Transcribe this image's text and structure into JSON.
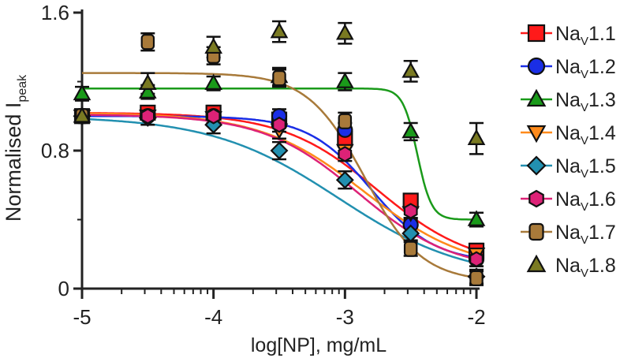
{
  "chart_data": {
    "type": "scatter",
    "title": "",
    "xlabel": "log[NP], mg/mL",
    "ylabel_main": "Normalised I",
    "ylabel_sub": "peak",
    "xlim": [
      -5,
      -2
    ],
    "ylim": [
      0,
      1.6
    ],
    "x_ticks": [
      -5,
      -4,
      -3,
      -2
    ],
    "x_tick_labels": [
      "-5",
      "-4",
      "-3",
      "-2"
    ],
    "y_ticks": [
      0,
      0.8,
      1.6
    ],
    "y_tick_labels": [
      "0",
      "0.8",
      "1.6"
    ],
    "grid": false,
    "legend_position": "right",
    "x": [
      -5,
      -4.5,
      -4,
      -3.5,
      -3,
      -2.5,
      -2
    ],
    "series": [
      {
        "name_main": "Na",
        "name_sub": "V",
        "name_tail": "1.1",
        "color": "#ff1a1a",
        "marker": "square",
        "values": [
          1.0,
          1.02,
          1.02,
          0.98,
          0.87,
          0.51,
          0.22
        ],
        "errors": [
          0,
          0,
          0.04,
          0.04,
          0.04,
          0.04,
          0.04
        ],
        "fit": {
          "top": 1.02,
          "bottom": 0.12,
          "logec50": -2.75,
          "hill": 1.2
        }
      },
      {
        "name_main": "Na",
        "name_sub": "V",
        "name_tail": "1.2",
        "color": "#1a2ee6",
        "marker": "circle",
        "values": [
          1.0,
          1.0,
          1.0,
          1.0,
          0.92,
          0.37,
          0.17
        ],
        "errors": [
          0,
          0,
          0.04,
          0.04,
          0.04,
          0.04,
          0.04
        ],
        "fit": {
          "top": 1.0,
          "bottom": 0.15,
          "logec50": -2.8,
          "hill": 1.8
        }
      },
      {
        "name_main": "Na",
        "name_sub": "V",
        "name_tail": "1.3",
        "color": "#1a9a1a",
        "marker": "triangle-up",
        "values": [
          1.13,
          1.14,
          1.19,
          1.23,
          1.2,
          0.91,
          0.4
        ],
        "errors": [
          0.04,
          0.04,
          0.04,
          0.05,
          0.05,
          0.05,
          0.04
        ],
        "fit": {
          "top": 1.16,
          "bottom": 0.4,
          "logec50": -2.45,
          "hill": 8
        }
      },
      {
        "name_main": "Na",
        "name_sub": "V",
        "name_tail": "1.4",
        "color": "#ff8a1a",
        "marker": "triangle-down",
        "values": [
          1.0,
          1.0,
          0.99,
          0.92,
          0.8,
          0.44,
          0.2
        ],
        "errors": [
          0,
          0,
          0.04,
          0.05,
          0.04,
          0.04,
          0.04
        ],
        "fit": {
          "top": 1.02,
          "bottom": 0.1,
          "logec50": -2.85,
          "hill": 1.1
        }
      },
      {
        "name_main": "Na",
        "name_sub": "V",
        "name_tail": "1.5",
        "color": "#2290b0",
        "marker": "diamond",
        "values": [
          1.0,
          0.99,
          0.95,
          0.8,
          0.63,
          0.32,
          0.07
        ],
        "errors": [
          0,
          0.04,
          0.05,
          0.05,
          0.05,
          0.04,
          0.04
        ],
        "fit": {
          "top": 1.0,
          "bottom": 0.05,
          "logec50": -3.05,
          "hill": 0.9
        }
      },
      {
        "name_main": "Na",
        "name_sub": "V",
        "name_tail": "1.6",
        "color": "#dd2277",
        "marker": "hexagon",
        "values": [
          1.0,
          1.0,
          1.0,
          0.95,
          0.78,
          0.45,
          0.17
        ],
        "errors": [
          0,
          0,
          0.04,
          0.04,
          0.04,
          0.04,
          0.04
        ],
        "fit": {
          "top": 1.01,
          "bottom": 0.1,
          "logec50": -2.9,
          "hill": 1.2
        }
      },
      {
        "name_main": "Na",
        "name_sub": "V",
        "name_tail": "1.7",
        "color": "#a87a3a",
        "marker": "rounded-square",
        "values": [
          1.0,
          1.43,
          1.35,
          1.22,
          0.97,
          0.23,
          0.06
        ],
        "errors": [
          0,
          0.05,
          0.05,
          0.05,
          0.05,
          0.04,
          0.04
        ],
        "fit": {
          "top": 1.25,
          "bottom": 0.04,
          "logec50": -2.85,
          "hill": 2.0
        }
      },
      {
        "name_main": "Na",
        "name_sub": "V",
        "name_tail": "1.8",
        "color": "#7a7a22",
        "marker": "triangle-up",
        "values": [
          1.0,
          1.19,
          1.4,
          1.49,
          1.48,
          1.26,
          0.87
        ],
        "errors": [
          0,
          0.06,
          0.06,
          0.06,
          0.06,
          0.06,
          0.09
        ]
      }
    ]
  }
}
